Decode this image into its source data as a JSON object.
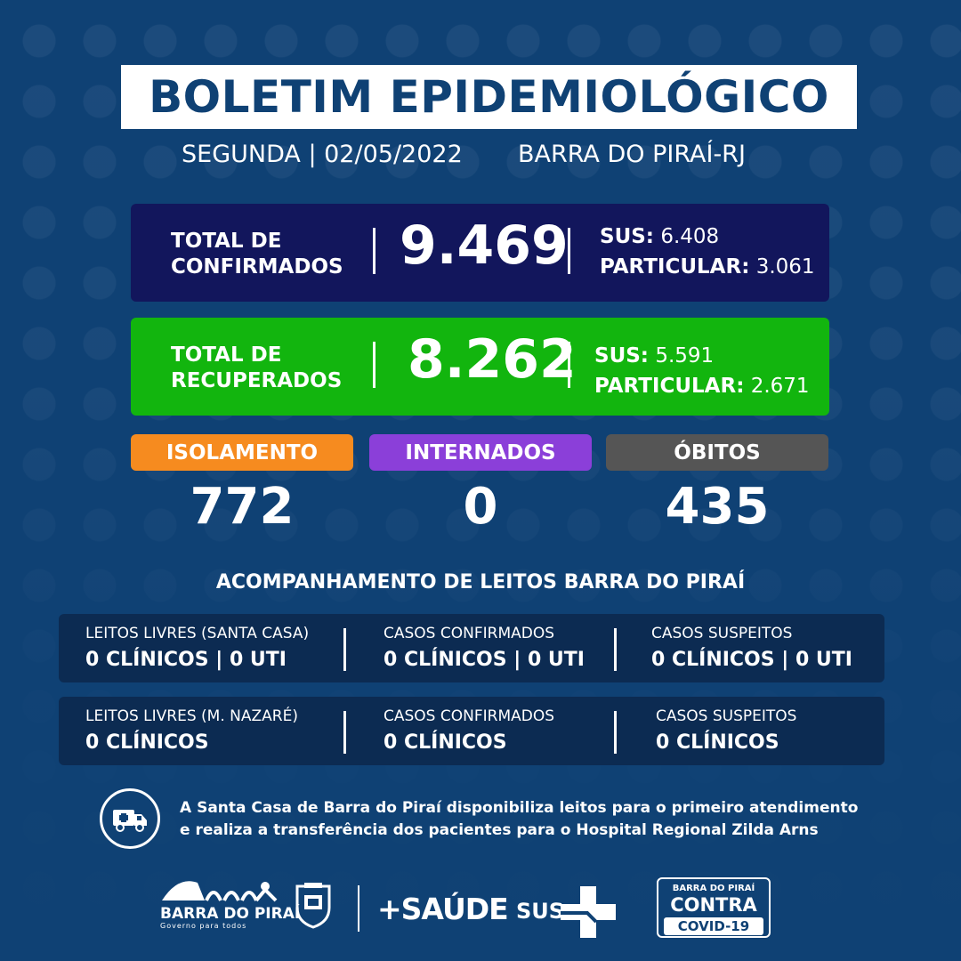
{
  "header": {
    "title": "BOLETIM EPIDEMIOLÓGICO",
    "date_line": "SEGUNDA | 02/05/2022",
    "city": "BARRA DO PIRAÍ-RJ"
  },
  "confirmed": {
    "label_line1": "TOTAL DE",
    "label_line2": "CONFIRMADOS",
    "total": "9.469",
    "sus_label": "SUS:",
    "sus_value": "6.408",
    "particular_label": "PARTICULAR:",
    "particular_value": "3.061",
    "color": "#12165c"
  },
  "recovered": {
    "label_line1": "TOTAL DE",
    "label_line2": "RECUPERADOS",
    "total": "8.262",
    "sus_label": "SUS:",
    "sus_value": "5.591",
    "particular_label": "PARTICULAR:",
    "particular_value": "2.671",
    "color": "#12b50e"
  },
  "indicators": [
    {
      "label": "ISOLAMENTO",
      "value": "772",
      "color": "#f68b1f"
    },
    {
      "label": "INTERNADOS",
      "value": "0",
      "color": "#8b3fd9"
    },
    {
      "label": "ÓBITOS",
      "value": "435",
      "color": "#555555"
    }
  ],
  "beds": {
    "title": "ACOMPANHAMENTO DE LEITOS BARRA DO PIRAÍ",
    "santa_casa": [
      {
        "label": "LEITOS LIVRES (SANTA CASA)",
        "value": "0 CLÍNICOS | 0 UTI"
      },
      {
        "label": "CASOS CONFIRMADOS",
        "value": "0 CLÍNICOS | 0 UTI"
      },
      {
        "label": "CASOS SUSPEITOS",
        "value": "0 CLÍNICOS | 0 UTI"
      }
    ],
    "nazare": [
      {
        "label": "LEITOS LIVRES (M. NAZARÉ)",
        "value": "0 CLÍNICOS"
      },
      {
        "label": "CASOS CONFIRMADOS",
        "value": "0 CLÍNICOS"
      },
      {
        "label": "CASOS SUSPEITOS",
        "value": "0 CLÍNICOS"
      }
    ]
  },
  "notice": {
    "icon": "ambulance-icon",
    "line1": "A Santa Casa de Barra do Piraí disponibiliza leitos para o primeiro atendimento",
    "line2": "e realiza a transferência dos pacientes para o Hospital Regional Zilda Arns"
  },
  "footer": {
    "prefeitura_name": "BARRA DO PIRAÍ",
    "prefeitura_slogan": "Governo para todos",
    "saude": "+SAÚDE",
    "sus": "SUS",
    "campaign_top": "BARRA DO PIRAÍ",
    "campaign_mid": "CONTRA",
    "campaign_bottom": "COVID-19"
  }
}
